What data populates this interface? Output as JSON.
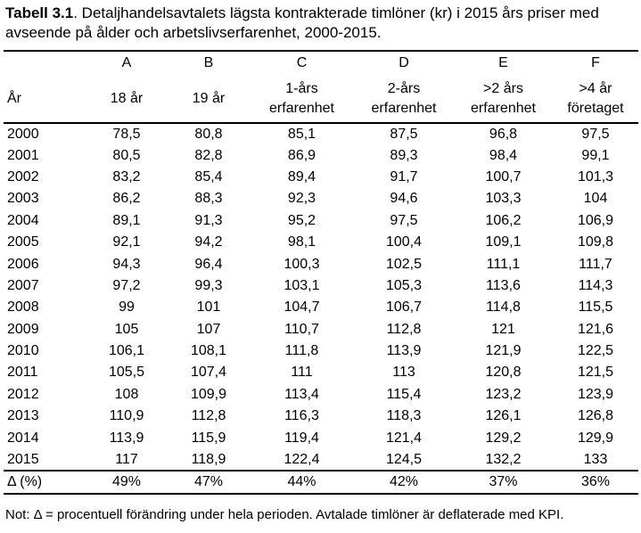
{
  "caption": {
    "label": "Tabell 3.1",
    "text": ". Detaljhandelsavtalets lägsta kontrakterade timlöner (kr) i 2015 års priser med avseende på ålder och arbetslivserfarenhet, 2000-2015."
  },
  "table": {
    "letters": [
      "A",
      "B",
      "C",
      "D",
      "E",
      "F"
    ],
    "year_header": "År",
    "column_headers": [
      [
        "18 år"
      ],
      [
        "19 år"
      ],
      [
        "1-års",
        "erfarenhet"
      ],
      [
        "2-års",
        "erfarenhet"
      ],
      [
        ">2 års",
        "erfarenhet"
      ],
      [
        ">4 år",
        "företaget"
      ]
    ],
    "rows": [
      {
        "year": "2000",
        "values": [
          "78,5",
          "80,8",
          "85,1",
          "87,5",
          "96,8",
          "97,5"
        ]
      },
      {
        "year": "2001",
        "values": [
          "80,5",
          "82,8",
          "86,9",
          "89,3",
          "98,4",
          "99,1"
        ]
      },
      {
        "year": "2002",
        "values": [
          "83,2",
          "85,4",
          "89,4",
          "91,7",
          "100,7",
          "101,3"
        ]
      },
      {
        "year": "2003",
        "values": [
          "86,2",
          "88,3",
          "92,3",
          "94,6",
          "103,3",
          "104"
        ]
      },
      {
        "year": "2004",
        "values": [
          "89,1",
          "91,3",
          "95,2",
          "97,5",
          "106,2",
          "106,9"
        ]
      },
      {
        "year": "2005",
        "values": [
          "92,1",
          "94,2",
          "98,1",
          "100,4",
          "109,1",
          "109,8"
        ]
      },
      {
        "year": "2006",
        "values": [
          "94,3",
          "96,4",
          "100,3",
          "102,5",
          "111,1",
          "111,7"
        ]
      },
      {
        "year": "2007",
        "values": [
          "97,2",
          "99,3",
          "103,1",
          "105,3",
          "113,6",
          "114,3"
        ]
      },
      {
        "year": "2008",
        "values": [
          "99",
          "101",
          "104,7",
          "106,7",
          "114,8",
          "115,5"
        ]
      },
      {
        "year": "2009",
        "values": [
          "105",
          "107",
          "110,7",
          "112,8",
          "121",
          "121,6"
        ]
      },
      {
        "year": "2010",
        "values": [
          "106,1",
          "108,1",
          "111,8",
          "113,9",
          "121,9",
          "122,5"
        ]
      },
      {
        "year": "2011",
        "values": [
          "105,5",
          "107,4",
          "111",
          "113",
          "120,8",
          "121,5"
        ]
      },
      {
        "year": "2012",
        "values": [
          "108",
          "109,9",
          "113,4",
          "115,4",
          "123,2",
          "123,9"
        ]
      },
      {
        "year": "2013",
        "values": [
          "110,9",
          "112,8",
          "116,3",
          "118,3",
          "126,1",
          "126,8"
        ]
      },
      {
        "year": "2014",
        "values": [
          "113,9",
          "115,9",
          "119,4",
          "121,4",
          "129,2",
          "129,9"
        ]
      },
      {
        "year": "2015",
        "values": [
          "117",
          "118,9",
          "122,4",
          "124,5",
          "132,2",
          "133"
        ]
      }
    ],
    "delta": {
      "label": "Δ (%)",
      "values": [
        "49%",
        "47%",
        "44%",
        "42%",
        "37%",
        "36%"
      ]
    }
  },
  "note": "Not: Δ = procentuell förändring under hela perioden. Avtalade timlöner är deflaterade med KPI."
}
